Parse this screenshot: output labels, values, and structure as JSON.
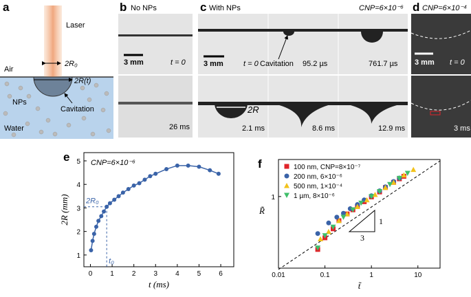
{
  "panels": {
    "a": {
      "label": "a",
      "laser": "Laser",
      "diameter": "2R₀",
      "air": "Air",
      "bubble": "2R(t)",
      "nps": "NPs",
      "cavitation": "Cavitation",
      "water": "Water"
    },
    "b": {
      "label": "b",
      "title": "No  NPs",
      "scale": "3 mm",
      "t0": "t = 0",
      "t1": "26 ms"
    },
    "c": {
      "label": "c",
      "title": "With NPs",
      "concentration": "CNP=6×10⁻⁶",
      "scale": "3 mm",
      "t0": "t = 0",
      "cavitation": "Cavitation",
      "t1": "95.2 µs",
      "t2": "761.7 µs",
      "diameter": "2R",
      "t3": "2.1 ms",
      "t4": "8.6 ms",
      "t5": "12.9 ms"
    },
    "d": {
      "label": "d",
      "concentration": "CNP=6×10⁻⁴",
      "scale": "3 mm",
      "t0": "t = 0",
      "t1": "3 ms"
    }
  },
  "chart_data": [
    {
      "type": "line",
      "panel_label": "e",
      "annotation": "CNP=6×10⁻⁶",
      "x_label": "t (ms)",
      "y_label": "2R (mm)",
      "x": [
        0.03,
        0.1,
        0.17,
        0.27,
        0.37,
        0.5,
        0.62,
        0.75,
        0.9,
        1.1,
        1.3,
        1.5,
        1.75,
        2.0,
        2.25,
        2.5,
        2.75,
        3.0,
        3.5,
        4.0,
        4.5,
        5.0,
        5.5,
        5.9
      ],
      "series": [
        {
          "color": "#3a63a8",
          "values": [
            1.2,
            1.6,
            1.9,
            2.2,
            2.45,
            2.65,
            2.85,
            3.05,
            3.2,
            3.35,
            3.5,
            3.65,
            3.8,
            3.95,
            4.05,
            4.2,
            4.35,
            4.45,
            4.65,
            4.8,
            4.8,
            4.75,
            4.6,
            4.45
          ]
        }
      ],
      "reference": [
        {
          "text": "2R₀",
          "y": 3.05
        },
        {
          "text": "t₀",
          "x": 0.75
        }
      ],
      "xlim": [
        -0.3,
        6.6
      ],
      "ylim": [
        0.5,
        5.35
      ],
      "xticks": [
        0,
        1,
        2,
        3,
        4,
        5,
        6
      ],
      "yticks": [
        1,
        2,
        3,
        4,
        5
      ]
    },
    {
      "type": "scatter",
      "panel_label": "f",
      "x_label": "t̃",
      "y_label": "R̃",
      "log": true,
      "slope": {
        "rise": "1",
        "run": "3"
      },
      "series": [
        {
          "name": "100 nm, CNP=8×10⁻⁷",
          "color": "#e0242a",
          "marker": "square",
          "x": [
            0.07,
            0.1,
            0.15,
            0.2,
            0.3,
            0.4,
            0.5,
            0.7,
            1,
            1.5,
            2,
            3,
            4,
            5
          ],
          "values": [
            0.27,
            0.36,
            0.45,
            0.55,
            0.65,
            0.72,
            0.78,
            0.88,
            0.99,
            1.12,
            1.25,
            1.42,
            1.55,
            1.65
          ]
        },
        {
          "name": "200 nm, 6×10⁻⁶",
          "color": "#3a63a8",
          "marker": "circle",
          "x": [
            0.07,
            0.12,
            0.18,
            0.25,
            0.35,
            0.5,
            0.7,
            1,
            1.5,
            2,
            3,
            4
          ],
          "values": [
            0.4,
            0.52,
            0.6,
            0.66,
            0.74,
            0.82,
            0.92,
            1.02,
            1.15,
            1.27,
            1.45,
            1.58
          ]
        },
        {
          "name": "500 nm, 1×10⁻⁴",
          "color": "#f2c21b",
          "marker": "triangle",
          "x": [
            0.08,
            0.12,
            0.2,
            0.3,
            0.5,
            0.8,
            1.2,
            2,
            3,
            5,
            8
          ],
          "values": [
            0.35,
            0.42,
            0.55,
            0.65,
            0.78,
            0.92,
            1.05,
            1.25,
            1.42,
            1.7,
            1.95
          ]
        },
        {
          "name": "1 µm, 8×10⁻⁶",
          "color": "#3fbf6a",
          "marker": "triangle-down",
          "x": [
            0.07,
            0.1,
            0.15,
            0.25,
            0.4,
            0.6,
            1,
            1.5,
            2.5,
            4,
            6
          ],
          "values": [
            0.28,
            0.38,
            0.47,
            0.6,
            0.72,
            0.85,
            1.0,
            1.13,
            1.35,
            1.57,
            1.78
          ]
        }
      ],
      "xlim": [
        0.01,
        30
      ],
      "ylim": [
        0.17,
        2.5
      ],
      "xticks": [
        0.01,
        0.1,
        1,
        10
      ],
      "yticks": [
        1
      ]
    }
  ]
}
